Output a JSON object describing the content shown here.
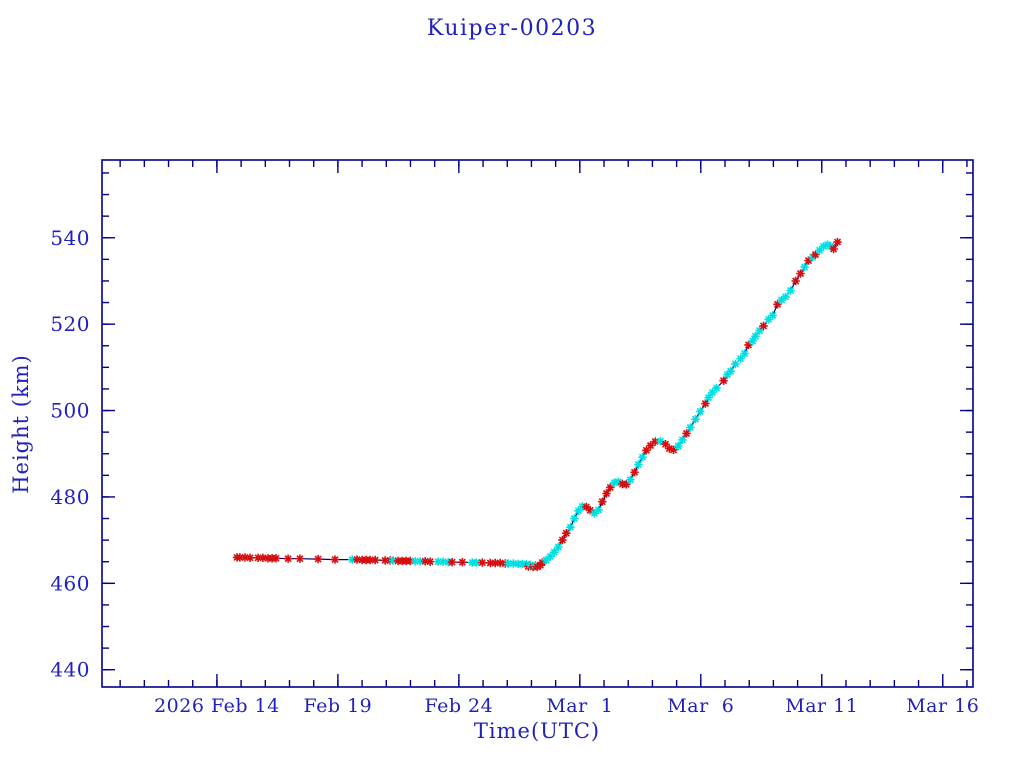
{
  "window": {
    "background_color": "#ffffff"
  },
  "chart_data": {
    "type": "line",
    "title": "Kuiper-00203",
    "xlabel": "Time(UTC)",
    "ylabel": "Height (km)",
    "colors": {
      "axis": "#00008b",
      "text": "#2121bb",
      "line": "#000080",
      "marker_r": "#d40f0f",
      "marker_c": "#00dfdf"
    },
    "marker_styles": {
      "r": "red-asterisk",
      "c": "cyan-asterisk"
    },
    "x_axis": {
      "unit": "day-of-year 2026",
      "min": 40.25,
      "max": 76.25,
      "minor_step": 1,
      "major_ticks": [
        {
          "value": 45,
          "label": "2026 Feb 14"
        },
        {
          "value": 50,
          "label": "Feb 19"
        },
        {
          "value": 55,
          "label": "Feb 24"
        },
        {
          "value": 60,
          "label": "Mar  1"
        },
        {
          "value": 65,
          "label": "Mar  6"
        },
        {
          "value": 70,
          "label": "Mar 11"
        },
        {
          "value": 75,
          "label": "Mar 16"
        }
      ]
    },
    "y_axis": {
      "unit": "km",
      "min": 436,
      "max": 558,
      "minor_step": 5,
      "major_ticks": [
        440,
        460,
        480,
        500,
        520,
        540
      ]
    },
    "points": [
      [
        45.83,
        466.0,
        "r"
      ],
      [
        45.95,
        466.0,
        "r"
      ],
      [
        46.16,
        466.0,
        "r"
      ],
      [
        46.37,
        465.9,
        "r"
      ],
      [
        46.7,
        465.9,
        "r"
      ],
      [
        46.9,
        465.9,
        "r"
      ],
      [
        47.11,
        465.8,
        "r"
      ],
      [
        47.28,
        465.8,
        "r"
      ],
      [
        47.44,
        465.8,
        "r"
      ],
      [
        47.94,
        465.7,
        "r"
      ],
      [
        48.43,
        465.7,
        "r"
      ],
      [
        49.18,
        465.6,
        "r"
      ],
      [
        49.88,
        465.5,
        "r"
      ],
      [
        50.59,
        465.5,
        "c"
      ],
      [
        50.79,
        465.5,
        "r"
      ],
      [
        51.0,
        465.4,
        "r"
      ],
      [
        51.17,
        465.4,
        "r"
      ],
      [
        51.33,
        465.4,
        "r"
      ],
      [
        51.54,
        465.4,
        "r"
      ],
      [
        51.95,
        465.3,
        "r"
      ],
      [
        52.16,
        465.3,
        "r"
      ],
      [
        52.28,
        465.3,
        "c"
      ],
      [
        52.49,
        465.2,
        "r"
      ],
      [
        52.66,
        465.2,
        "r"
      ],
      [
        52.82,
        465.2,
        "r"
      ],
      [
        52.99,
        465.2,
        "r"
      ],
      [
        53.19,
        465.1,
        "c"
      ],
      [
        53.4,
        465.1,
        "c"
      ],
      [
        53.61,
        465.1,
        "r"
      ],
      [
        53.81,
        465.0,
        "r"
      ],
      [
        54.14,
        465.0,
        "c"
      ],
      [
        54.35,
        465.0,
        "c"
      ],
      [
        54.56,
        464.9,
        "c"
      ],
      [
        54.72,
        464.9,
        "r"
      ],
      [
        55.14,
        464.9,
        "r"
      ],
      [
        55.55,
        464.8,
        "c"
      ],
      [
        55.72,
        464.8,
        "c"
      ],
      [
        55.97,
        464.8,
        "r"
      ],
      [
        56.3,
        464.7,
        "r"
      ],
      [
        56.5,
        464.7,
        "r"
      ],
      [
        56.71,
        464.7,
        "r"
      ],
      [
        56.92,
        464.6,
        "r"
      ],
      [
        57.04,
        464.6,
        "c"
      ],
      [
        57.25,
        464.6,
        "c"
      ],
      [
        57.45,
        464.5,
        "c"
      ],
      [
        57.62,
        464.5,
        "c"
      ],
      [
        57.79,
        464.4,
        "c"
      ],
      [
        57.87,
        463.9,
        "r"
      ],
      [
        57.95,
        464.3,
        "c"
      ],
      [
        58.07,
        463.8,
        "r"
      ],
      [
        58.16,
        464.2,
        "c"
      ],
      [
        58.24,
        463.8,
        "r"
      ],
      [
        58.37,
        464.2,
        "r"
      ],
      [
        58.45,
        464.8,
        "r"
      ],
      [
        58.61,
        465.4,
        "c"
      ],
      [
        58.78,
        466.2,
        "c"
      ],
      [
        58.94,
        467.2,
        "c"
      ],
      [
        59.11,
        468.4,
        "c"
      ],
      [
        59.28,
        470.0,
        "r"
      ],
      [
        59.44,
        471.6,
        "r"
      ],
      [
        59.61,
        473.0,
        "c"
      ],
      [
        59.77,
        475.0,
        "c"
      ],
      [
        59.94,
        476.8,
        "c"
      ],
      [
        60.1,
        477.8,
        "c"
      ],
      [
        60.27,
        477.7,
        "r"
      ],
      [
        60.43,
        476.9,
        "r"
      ],
      [
        60.6,
        476.2,
        "c"
      ],
      [
        60.77,
        477.0,
        "c"
      ],
      [
        60.93,
        478.9,
        "r"
      ],
      [
        61.1,
        480.8,
        "r"
      ],
      [
        61.26,
        482.2,
        "r"
      ],
      [
        61.43,
        483.3,
        "c"
      ],
      [
        61.59,
        483.5,
        "c"
      ],
      [
        61.76,
        483.0,
        "r"
      ],
      [
        61.92,
        482.9,
        "r"
      ],
      [
        62.09,
        484.0,
        "c"
      ],
      [
        62.26,
        485.7,
        "r"
      ],
      [
        62.42,
        487.5,
        "c"
      ],
      [
        62.59,
        489.2,
        "c"
      ],
      [
        62.75,
        490.8,
        "r"
      ],
      [
        62.92,
        491.9,
        "r"
      ],
      [
        63.12,
        492.8,
        "r"
      ],
      [
        63.33,
        492.9,
        "c"
      ],
      [
        63.54,
        492.2,
        "r"
      ],
      [
        63.7,
        491.2,
        "r"
      ],
      [
        63.87,
        490.9,
        "r"
      ],
      [
        64.07,
        491.8,
        "c"
      ],
      [
        64.24,
        493.2,
        "c"
      ],
      [
        64.41,
        494.7,
        "r"
      ],
      [
        64.57,
        496.1,
        "c"
      ],
      [
        64.78,
        498.0,
        "c"
      ],
      [
        64.98,
        499.8,
        "c"
      ],
      [
        65.19,
        501.6,
        "r"
      ],
      [
        65.32,
        503.0,
        "c"
      ],
      [
        65.48,
        504.2,
        "c"
      ],
      [
        65.65,
        505.2,
        "c"
      ],
      [
        65.94,
        506.9,
        "r"
      ],
      [
        66.1,
        508.3,
        "c"
      ],
      [
        66.23,
        509.1,
        "c"
      ],
      [
        66.43,
        510.8,
        "c"
      ],
      [
        66.64,
        512.0,
        "c"
      ],
      [
        66.81,
        513.2,
        "c"
      ],
      [
        66.97,
        515.2,
        "r"
      ],
      [
        67.14,
        516.1,
        "c"
      ],
      [
        67.26,
        517.2,
        "c"
      ],
      [
        67.43,
        518.5,
        "c"
      ],
      [
        67.59,
        519.6,
        "r"
      ],
      [
        67.8,
        521.1,
        "c"
      ],
      [
        67.97,
        522.0,
        "c"
      ],
      [
        68.17,
        524.6,
        "r"
      ],
      [
        68.34,
        525.6,
        "c"
      ],
      [
        68.5,
        526.3,
        "c"
      ],
      [
        68.71,
        527.8,
        "c"
      ],
      [
        68.92,
        530.0,
        "r"
      ],
      [
        69.12,
        531.7,
        "r"
      ],
      [
        69.29,
        533.2,
        "c"
      ],
      [
        69.45,
        534.7,
        "r"
      ],
      [
        69.62,
        535.5,
        "c"
      ],
      [
        69.74,
        536.1,
        "r"
      ],
      [
        69.91,
        537.1,
        "c"
      ],
      [
        70.07,
        538.0,
        "c"
      ],
      [
        70.24,
        538.4,
        "c"
      ],
      [
        70.36,
        538.1,
        "c"
      ],
      [
        70.49,
        537.4,
        "r"
      ],
      [
        70.65,
        539.0,
        "r"
      ]
    ]
  }
}
